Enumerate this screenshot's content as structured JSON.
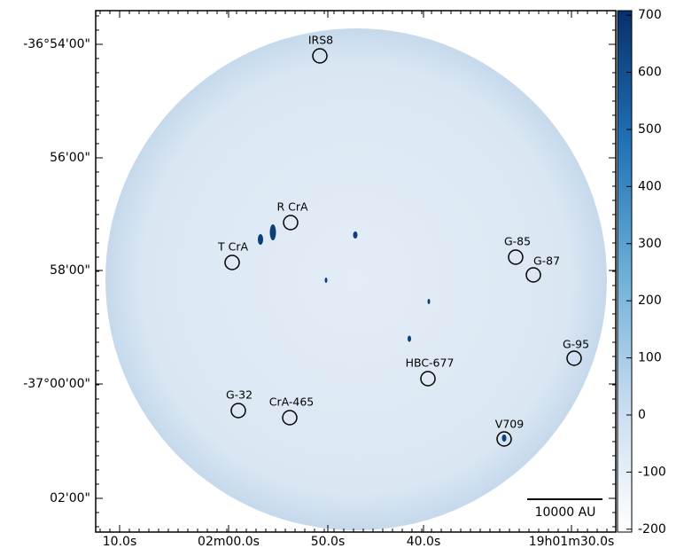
{
  "chart_data": {
    "type": "image",
    "x_labels": [
      "10.0s",
      "02m00.0s",
      "50.0s",
      "40.0s",
      "19h01m30.0s"
    ],
    "y_labels": [
      "-36°54'00\"",
      "56'00\"",
      "58'00\"",
      "-37°00'00\"",
      "02'00\""
    ],
    "sources": [
      "IRS8",
      "R CrA",
      "T CrA",
      "G-85",
      "G-87",
      "G-95",
      "HBC-677",
      "G-32",
      "CrA-465",
      "V709"
    ],
    "scale_bar": "10000 AU",
    "colorbar": {
      "lim": [
        -205,
        708
      ],
      "ticks": [
        -200,
        -100,
        0,
        100,
        200,
        300,
        400,
        500,
        600,
        700
      ],
      "colors": [
        "#ffffff",
        "#c6dbef",
        "#6baed6",
        "#2171b5",
        "#08306b"
      ]
    }
  }
}
